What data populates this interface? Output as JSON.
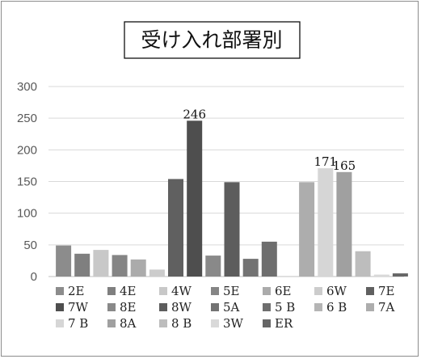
{
  "chart_data": {
    "type": "bar",
    "title": "受け入れ部署別",
    "xlabel": "",
    "ylabel": "",
    "ylim": [
      0,
      300
    ],
    "yticks": [
      0,
      50,
      100,
      150,
      200,
      250,
      300
    ],
    "grid": true,
    "legend_position": "bottom",
    "series": [
      {
        "name": "2E",
        "value": 49,
        "color": "#8c8c8c"
      },
      {
        "name": "4E",
        "value": 36,
        "color": "#7f7f7f"
      },
      {
        "name": "4W",
        "value": 42,
        "color": "#c8c8c8"
      },
      {
        "name": "5E",
        "value": 34,
        "color": "#858585"
      },
      {
        "name": "6E",
        "value": 27,
        "color": "#ababab"
      },
      {
        "name": "6W",
        "value": 11,
        "color": "#cccccc"
      },
      {
        "name": "7E",
        "value": 154,
        "color": "#606060"
      },
      {
        "name": "7W",
        "value": 246,
        "color": "#4e4e4e"
      },
      {
        "name": "8E",
        "value": 33,
        "color": "#898989"
      },
      {
        "name": "8W",
        "value": 149,
        "color": "#5d5d5d"
      },
      {
        "name": "5A",
        "value": 28,
        "color": "#737373"
      },
      {
        "name": "5 B",
        "value": 55,
        "color": "#6e6e6e"
      },
      {
        "name": "6 B",
        "value": 0,
        "color": "#b5b5b5"
      },
      {
        "name": "7A",
        "value": 149,
        "color": "#adadad"
      },
      {
        "name": "7 B",
        "value": 171,
        "color": "#d6d6d6"
      },
      {
        "name": "8A",
        "value": 165,
        "color": "#a0a0a0"
      },
      {
        "name": "8 B",
        "value": 40,
        "color": "#bdbdbd"
      },
      {
        "name": "3W",
        "value": 3,
        "color": "#d9d9d9"
      },
      {
        "name": "ER",
        "value": 5,
        "color": "#666666"
      }
    ],
    "data_labels": {
      "7W": "246",
      "7 B": "171",
      "8A": "165"
    }
  }
}
